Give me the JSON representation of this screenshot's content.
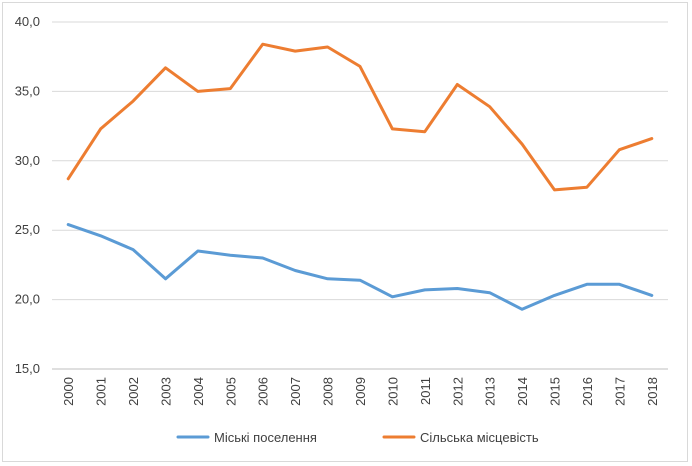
{
  "chart_data": {
    "type": "line",
    "title": "",
    "xlabel": "",
    "ylabel": "",
    "x": [
      "2000",
      "2001",
      "2002",
      "2003",
      "2004",
      "2005",
      "2006",
      "2007",
      "2008",
      "2009",
      "2010",
      "2011",
      "2012",
      "2013",
      "2014",
      "2015",
      "2016",
      "2017",
      "2018"
    ],
    "ylim": [
      15,
      40
    ],
    "yticks": [
      "15,0",
      "20,0",
      "25,0",
      "30,0",
      "35,0",
      "40,0"
    ],
    "ytick_values": [
      15,
      20,
      25,
      30,
      35,
      40
    ],
    "grid": "horizontal",
    "legend_position": "bottom",
    "series": [
      {
        "name": "Міські поселення",
        "color": "#5b9bd5",
        "values": [
          25.4,
          24.6,
          23.6,
          21.5,
          23.5,
          23.2,
          23.0,
          22.1,
          21.5,
          21.4,
          20.2,
          20.7,
          20.8,
          20.5,
          19.3,
          20.3,
          21.1,
          21.1,
          20.3
        ]
      },
      {
        "name": "Сільська місцевість",
        "color": "#ed7d31",
        "values": [
          28.7,
          32.3,
          34.3,
          36.7,
          35.0,
          35.2,
          38.4,
          37.9,
          38.2,
          36.8,
          32.3,
          32.1,
          35.5,
          33.9,
          31.2,
          27.9,
          28.1,
          30.8,
          31.6
        ]
      }
    ]
  }
}
